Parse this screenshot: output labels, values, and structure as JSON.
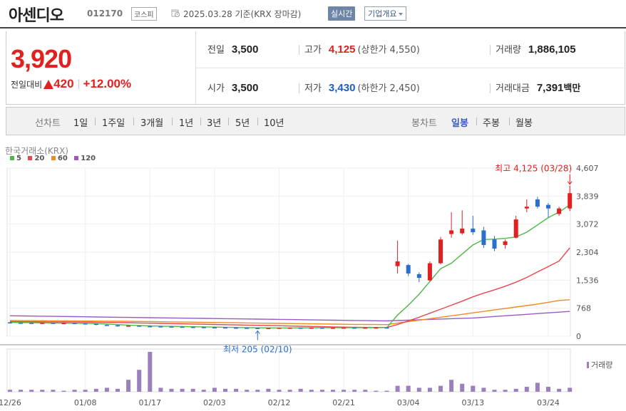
{
  "header": {
    "stock_name": "아센디오",
    "stock_code": "012170",
    "market": "코스피",
    "as_of": "2025.03.28 기준(KRX 장마감)",
    "realtime_button": "실시간",
    "company_button": "기업개요"
  },
  "price": {
    "current": "3,920",
    "change_label": "전일대비",
    "change_value": "420",
    "change_percent": "+12.00%",
    "prev_close_label": "전일",
    "prev_close": "3,500",
    "high_label": "고가",
    "high": "4,125",
    "upper_limit": "(상한가 4,550)",
    "volume_label": "거래량",
    "volume": "1,886,105",
    "open_label": "시가",
    "open": "3,500",
    "low_label": "저가",
    "low": "3,430",
    "lower_limit": "(하한가 2,450)",
    "amount_label": "거래대금",
    "amount": "7,391",
    "amount_unit": "백만"
  },
  "tabs": {
    "line_label": "선차트",
    "line_periods": [
      "1일",
      "1주일",
      "3개월",
      "1년",
      "3년",
      "5년",
      "10년"
    ],
    "candle_label": "봉차트",
    "candle_periods": [
      "일봉",
      "주봉",
      "월봉"
    ],
    "candle_selected": "일봉"
  },
  "chart_data": {
    "type": "candlestick",
    "source": "한국거래소(KRX)",
    "legend": [
      {
        "name": "5",
        "color": "#4db848"
      },
      {
        "name": "20",
        "color": "#e8474f"
      },
      {
        "name": "60",
        "color": "#f08a24"
      },
      {
        "name": "120",
        "color": "#9b59c7"
      }
    ],
    "yticks": [
      "4,607",
      "3,839",
      "3,072",
      "2,304",
      "1,536",
      "768",
      "0"
    ],
    "ylim": [
      0,
      4607
    ],
    "xticks": [
      "12/26",
      "01/08",
      "01/17",
      "02/03",
      "02/12",
      "02/21",
      "03/04",
      "03/13",
      "03/24"
    ],
    "xtick_index": [
      0,
      7,
      13,
      19,
      25,
      31,
      37,
      43,
      50
    ],
    "high_annotation": "최고 4,125 (03/28)",
    "low_annotation": "최저 205 (02/10)",
    "volume_label": "거래량",
    "up_color": "#e12020",
    "down_color": "#2a6fd0",
    "candles": [
      {
        "o": 380,
        "h": 390,
        "l": 360,
        "c": 370
      },
      {
        "o": 370,
        "h": 380,
        "l": 355,
        "c": 365
      },
      {
        "o": 365,
        "h": 375,
        "l": 350,
        "c": 360
      },
      {
        "o": 360,
        "h": 375,
        "l": 350,
        "c": 365
      },
      {
        "o": 365,
        "h": 370,
        "l": 345,
        "c": 355
      },
      {
        "o": 355,
        "h": 370,
        "l": 345,
        "c": 360
      },
      {
        "o": 360,
        "h": 365,
        "l": 340,
        "c": 350
      },
      {
        "o": 350,
        "h": 360,
        "l": 335,
        "c": 345
      },
      {
        "o": 345,
        "h": 350,
        "l": 300,
        "c": 310
      },
      {
        "o": 310,
        "h": 330,
        "l": 290,
        "c": 300
      },
      {
        "o": 300,
        "h": 310,
        "l": 260,
        "c": 270
      },
      {
        "o": 270,
        "h": 300,
        "l": 260,
        "c": 290
      },
      {
        "o": 290,
        "h": 295,
        "l": 265,
        "c": 275
      },
      {
        "o": 275,
        "h": 285,
        "l": 260,
        "c": 270
      },
      {
        "o": 270,
        "h": 280,
        "l": 255,
        "c": 265
      },
      {
        "o": 265,
        "h": 275,
        "l": 250,
        "c": 260
      },
      {
        "o": 260,
        "h": 270,
        "l": 245,
        "c": 255
      },
      {
        "o": 255,
        "h": 265,
        "l": 240,
        "c": 250
      },
      {
        "o": 250,
        "h": 260,
        "l": 235,
        "c": 245
      },
      {
        "o": 245,
        "h": 255,
        "l": 230,
        "c": 240
      },
      {
        "o": 240,
        "h": 250,
        "l": 225,
        "c": 235
      },
      {
        "o": 235,
        "h": 245,
        "l": 220,
        "c": 230
      },
      {
        "o": 230,
        "h": 240,
        "l": 210,
        "c": 225
      },
      {
        "o": 225,
        "h": 235,
        "l": 205,
        "c": 215
      },
      {
        "o": 215,
        "h": 230,
        "l": 205,
        "c": 225
      },
      {
        "o": 225,
        "h": 235,
        "l": 215,
        "c": 230
      },
      {
        "o": 230,
        "h": 240,
        "l": 220,
        "c": 232
      },
      {
        "o": 232,
        "h": 240,
        "l": 222,
        "c": 228
      },
      {
        "o": 228,
        "h": 238,
        "l": 220,
        "c": 234
      },
      {
        "o": 234,
        "h": 240,
        "l": 225,
        "c": 230
      },
      {
        "o": 230,
        "h": 238,
        "l": 222,
        "c": 233
      },
      {
        "o": 233,
        "h": 240,
        "l": 225,
        "c": 236
      },
      {
        "o": 236,
        "h": 242,
        "l": 226,
        "c": 232
      },
      {
        "o": 232,
        "h": 240,
        "l": 225,
        "c": 236
      },
      {
        "o": 236,
        "h": 244,
        "l": 228,
        "c": 238
      },
      {
        "o": 238,
        "h": 244,
        "l": 230,
        "c": 235
      },
      {
        "o": 1920,
        "h": 2620,
        "l": 1720,
        "c": 2050
      },
      {
        "o": 1950,
        "h": 1980,
        "l": 1650,
        "c": 1720
      },
      {
        "o": 1700,
        "h": 1750,
        "l": 1480,
        "c": 1600
      },
      {
        "o": 1530,
        "h": 2050,
        "l": 1500,
        "c": 2000
      },
      {
        "o": 2000,
        "h": 2720,
        "l": 1970,
        "c": 2650
      },
      {
        "o": 2800,
        "h": 3400,
        "l": 2700,
        "c": 2900
      },
      {
        "o": 2820,
        "h": 3450,
        "l": 2780,
        "c": 2950
      },
      {
        "o": 2950,
        "h": 3300,
        "l": 2780,
        "c": 2850
      },
      {
        "o": 2900,
        "h": 3000,
        "l": 2420,
        "c": 2500
      },
      {
        "o": 2650,
        "h": 2750,
        "l": 2330,
        "c": 2400
      },
      {
        "o": 2500,
        "h": 2650,
        "l": 2400,
        "c": 2600
      },
      {
        "o": 2700,
        "h": 3300,
        "l": 2680,
        "c": 3200
      },
      {
        "o": 3500,
        "h": 3750,
        "l": 3400,
        "c": 3550
      },
      {
        "o": 3750,
        "h": 3820,
        "l": 3500,
        "c": 3550
      },
      {
        "o": 3600,
        "h": 3650,
        "l": 3250,
        "c": 3500
      },
      {
        "o": 3350,
        "h": 3550,
        "l": 3300,
        "c": 3500
      },
      {
        "o": 3500,
        "h": 4125,
        "l": 3430,
        "c": 3920
      }
    ],
    "ma5": [
      380,
      374,
      370,
      366,
      362,
      359,
      356,
      352,
      344,
      334,
      318,
      305,
      290,
      283,
      276,
      270,
      265,
      260,
      255,
      250,
      245,
      240,
      235,
      230,
      228,
      226,
      227,
      228,
      230,
      232,
      233,
      234,
      235,
      235,
      236,
      236,
      580,
      850,
      1150,
      1500,
      1850,
      2000,
      2250,
      2500,
      2650,
      2660,
      2680,
      2720,
      2850,
      3050,
      3250,
      3400,
      3600
    ],
    "ma20": [
      400,
      398,
      396,
      394,
      392,
      390,
      388,
      386,
      382,
      378,
      374,
      370,
      364,
      358,
      352,
      346,
      340,
      334,
      328,
      322,
      316,
      310,
      304,
      298,
      292,
      286,
      280,
      274,
      268,
      262,
      256,
      250,
      246,
      242,
      240,
      238,
      320,
      420,
      520,
      630,
      740,
      850,
      960,
      1080,
      1180,
      1270,
      1370,
      1480,
      1610,
      1760,
      1910,
      2060,
      2420
    ],
    "ma60": [
      430,
      428,
      426,
      424,
      422,
      420,
      418,
      416,
      414,
      412,
      410,
      408,
      404,
      400,
      396,
      392,
      388,
      384,
      380,
      376,
      372,
      368,
      364,
      360,
      356,
      352,
      348,
      344,
      340,
      336,
      332,
      328,
      324,
      322,
      320,
      318,
      360,
      400,
      440,
      480,
      520,
      560,
      600,
      640,
      680,
      720,
      760,
      800,
      840,
      880,
      930,
      980,
      1000
    ],
    "ma120": [
      560,
      556,
      552,
      548,
      544,
      540,
      536,
      532,
      528,
      524,
      520,
      516,
      512,
      508,
      504,
      500,
      496,
      492,
      488,
      484,
      480,
      476,
      472,
      468,
      464,
      460,
      456,
      452,
      448,
      444,
      440,
      436,
      432,
      428,
      424,
      420,
      430,
      440,
      450,
      460,
      470,
      480,
      490,
      500,
      520,
      540,
      560,
      580,
      600,
      620,
      640,
      660,
      680
    ],
    "volume": [
      2,
      2,
      2,
      2,
      2,
      1,
      2,
      2,
      3,
      4,
      3,
      12,
      22,
      40,
      4,
      3,
      3,
      3,
      2,
      4,
      3,
      3,
      2,
      2,
      3,
      2,
      2,
      3,
      2,
      2,
      2,
      2,
      2,
      2,
      1,
      1,
      6,
      6,
      4,
      4,
      6,
      12,
      8,
      6,
      4,
      2,
      2,
      3,
      5,
      9,
      5,
      3,
      4
    ]
  }
}
